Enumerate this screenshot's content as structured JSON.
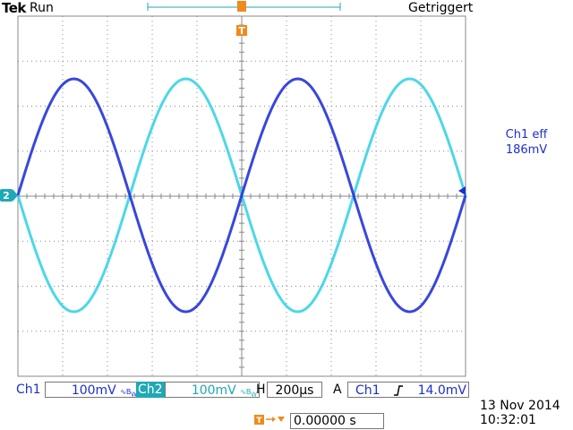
{
  "header": {
    "brand": "Tek",
    "run_state": "Run",
    "trigger_state": "Getriggert"
  },
  "measurement": {
    "label": "Ch1 eff",
    "value": "186mV"
  },
  "channels": {
    "ch1": {
      "label": "Ch1",
      "scale": "100mV",
      "color": "#1c2fd0"
    },
    "ch2": {
      "label": "Ch2",
      "scale": "100mV",
      "color": "#1fa8b5",
      "marker": "2"
    }
  },
  "bandwidth_icon": "bandwidth-limit-icon",
  "timebase": {
    "label": "H",
    "value": "200µs"
  },
  "trigger": {
    "mode": "A",
    "source": "Ch1",
    "slope_icon": "rising-edge-icon",
    "level": "14.0mV",
    "marker": "T"
  },
  "horizontal_position": {
    "value": "0.00000 s"
  },
  "date": "13 Nov 2014",
  "time": "10:32:01"
}
